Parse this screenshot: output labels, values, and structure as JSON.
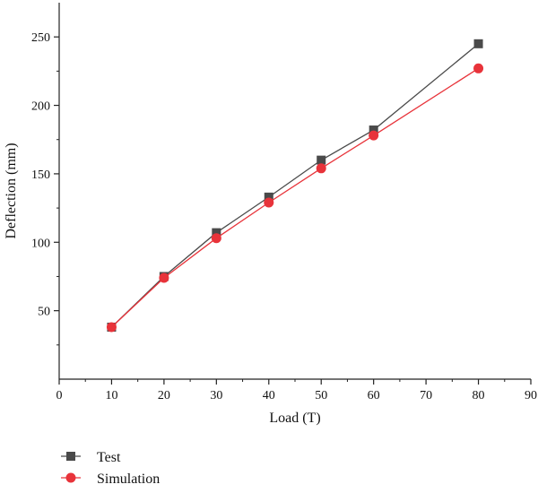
{
  "chart_data": {
    "type": "line",
    "xlabel": "Load (T)",
    "ylabel": "Deflection (mm)",
    "xlim": [
      0,
      90
    ],
    "ylim": [
      0,
      275
    ],
    "x_ticks": [
      0,
      10,
      20,
      30,
      40,
      50,
      60,
      70,
      80,
      90
    ],
    "y_ticks": [
      50,
      100,
      150,
      200,
      250
    ],
    "grid": false,
    "legend_position": "bottom-left",
    "series": [
      {
        "name": "Test",
        "marker": "square",
        "color": "#4a4a4a",
        "x": [
          10,
          20,
          30,
          40,
          50,
          60,
          80
        ],
        "y": [
          38,
          75,
          107,
          133,
          160,
          182,
          245
        ]
      },
      {
        "name": "Simulation",
        "marker": "circle",
        "color": "#e8333a",
        "x": [
          10,
          20,
          30,
          40,
          50,
          60,
          80
        ],
        "y": [
          38,
          74,
          103,
          129,
          154,
          178,
          227
        ]
      }
    ]
  }
}
